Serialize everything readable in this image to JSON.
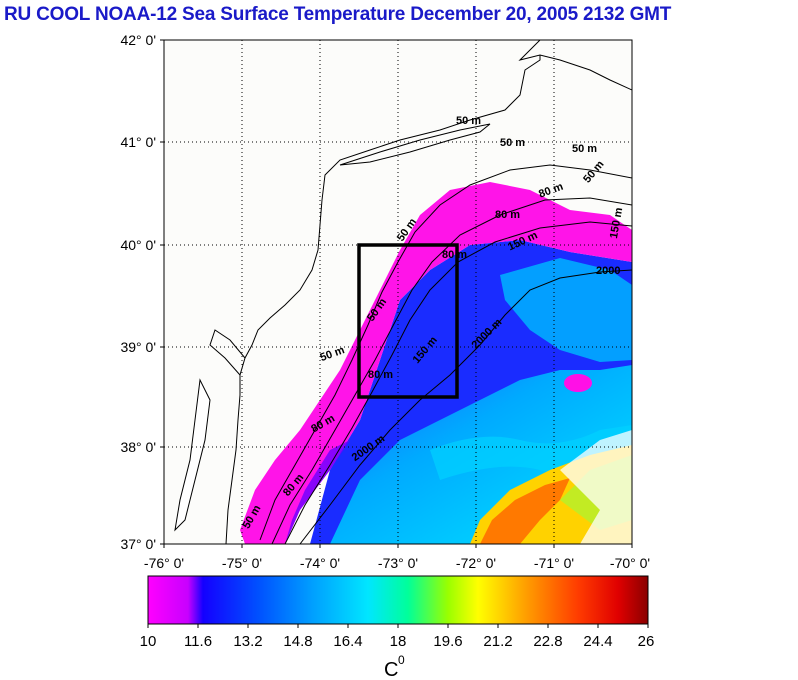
{
  "title": "RU COOL  NOAA-12 Sea Surface Temperature December 20, 2005 2132 GMT",
  "y_axis_labels": [
    "42° 0'",
    "41° 0'",
    "40° 0'",
    "39° 0'",
    "38° 0'",
    "37° 0'"
  ],
  "x_axis_labels": [
    "-76° 0'",
    "-75° 0'",
    "-74° 0'",
    "-73° 0'",
    "-72° 0'",
    "-71° 0'",
    "-70° 0'"
  ],
  "contour_labels": [
    "50 m",
    "50 m",
    "50 m",
    "50 m",
    "80 m",
    "80 m",
    "150 m",
    "150 m",
    "2000",
    "50 m",
    "50 m",
    "80 m",
    "150 m",
    "2000 m",
    "50 m",
    "80 m",
    "2000 m",
    "80 m",
    "50 m",
    "80 m"
  ],
  "colorbar": {
    "ticks": [
      "10",
      "11.6",
      "13.2",
      "14.8",
      "16.4",
      "18",
      "19.6",
      "21.2",
      "22.8",
      "24.4",
      "26"
    ],
    "unit": "C",
    "unit_sup": "0",
    "colors": [
      "#ff00ff",
      "#c800ff",
      "#1400ff",
      "#0050ff",
      "#00a0ff",
      "#00e6ff",
      "#00ff9a",
      "#9aff00",
      "#ffff00",
      "#ff9a00",
      "#ff3c00",
      "#e00000",
      "#8a0000"
    ]
  },
  "colors": {
    "title": "#1a1ac8",
    "land": "#fafaf5",
    "sst_warm_slope": "#1428ff",
    "sst_gulf": "#00a8ff",
    "sst_shelf": "#ff10e6"
  }
}
